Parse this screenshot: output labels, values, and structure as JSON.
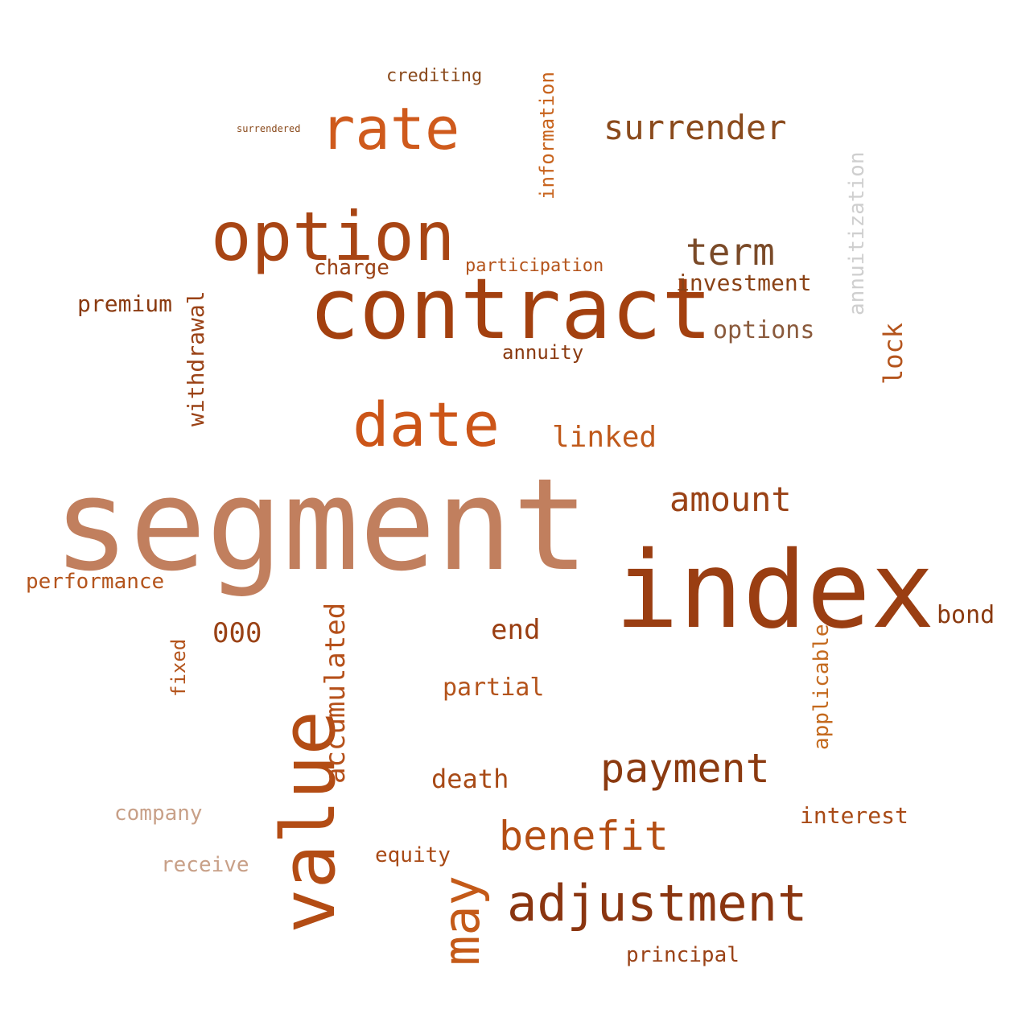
{
  "words": [
    {
      "text": "segment",
      "color": "#c17f5e"
    },
    {
      "text": "index",
      "color": "#9a3e12"
    },
    {
      "text": "contract",
      "color": "#a3400f"
    },
    {
      "text": "value",
      "color": "#b34c14"
    },
    {
      "text": "option",
      "color": "#a84514"
    },
    {
      "text": "date",
      "color": "#cc5518"
    },
    {
      "text": "rate",
      "color": "#cf5a1c"
    },
    {
      "text": "adjustment",
      "color": "#8a3510"
    },
    {
      "text": "may",
      "color": "#c45a18"
    },
    {
      "text": "benefit",
      "color": "#b44e14"
    },
    {
      "text": "payment",
      "color": "#8b3a10"
    },
    {
      "text": "surrender",
      "color": "#8a4a1c"
    },
    {
      "text": "term",
      "color": "#7a4a28"
    },
    {
      "text": "amount",
      "color": "#9a4216"
    },
    {
      "text": "annuitization",
      "color": "#cfcfcf"
    },
    {
      "text": "accumulated",
      "color": "#b5501a"
    },
    {
      "text": "linked",
      "color": "#c05a1c"
    },
    {
      "text": "withdrawal",
      "color": "#9a4216"
    },
    {
      "text": "premium",
      "color": "#8a3a10"
    },
    {
      "text": "000",
      "color": "#9a4216"
    },
    {
      "text": "death",
      "color": "#a84a16"
    },
    {
      "text": "partial",
      "color": "#b4541c"
    },
    {
      "text": "end",
      "color": "#9a3e12"
    },
    {
      "text": "lock",
      "color": "#b4541c"
    },
    {
      "text": "investment",
      "color": "#8a4216"
    },
    {
      "text": "options",
      "color": "#8a5a3c"
    },
    {
      "text": "information",
      "color": "#c8641e"
    },
    {
      "text": "charge",
      "color": "#9a4216"
    },
    {
      "text": "participation",
      "color": "#b4541c"
    },
    {
      "text": "interest",
      "color": "#a84a16"
    },
    {
      "text": "principal",
      "color": "#9a4216"
    },
    {
      "text": "bond",
      "color": "#8a3a10"
    },
    {
      "text": "applicable",
      "color": "#c46a1e"
    },
    {
      "text": "fixed",
      "color": "#b4541c"
    },
    {
      "text": "equity",
      "color": "#a84a16"
    },
    {
      "text": "company",
      "color": "#c8a088"
    },
    {
      "text": "receive",
      "color": "#c8a088"
    },
    {
      "text": "performance",
      "color": "#b4541c"
    },
    {
      "text": "annuity",
      "color": "#8a3a10"
    },
    {
      "text": "crediting",
      "color": "#8a4a1c"
    },
    {
      "text": "surrendered",
      "color": "#8a4a1c"
    }
  ]
}
